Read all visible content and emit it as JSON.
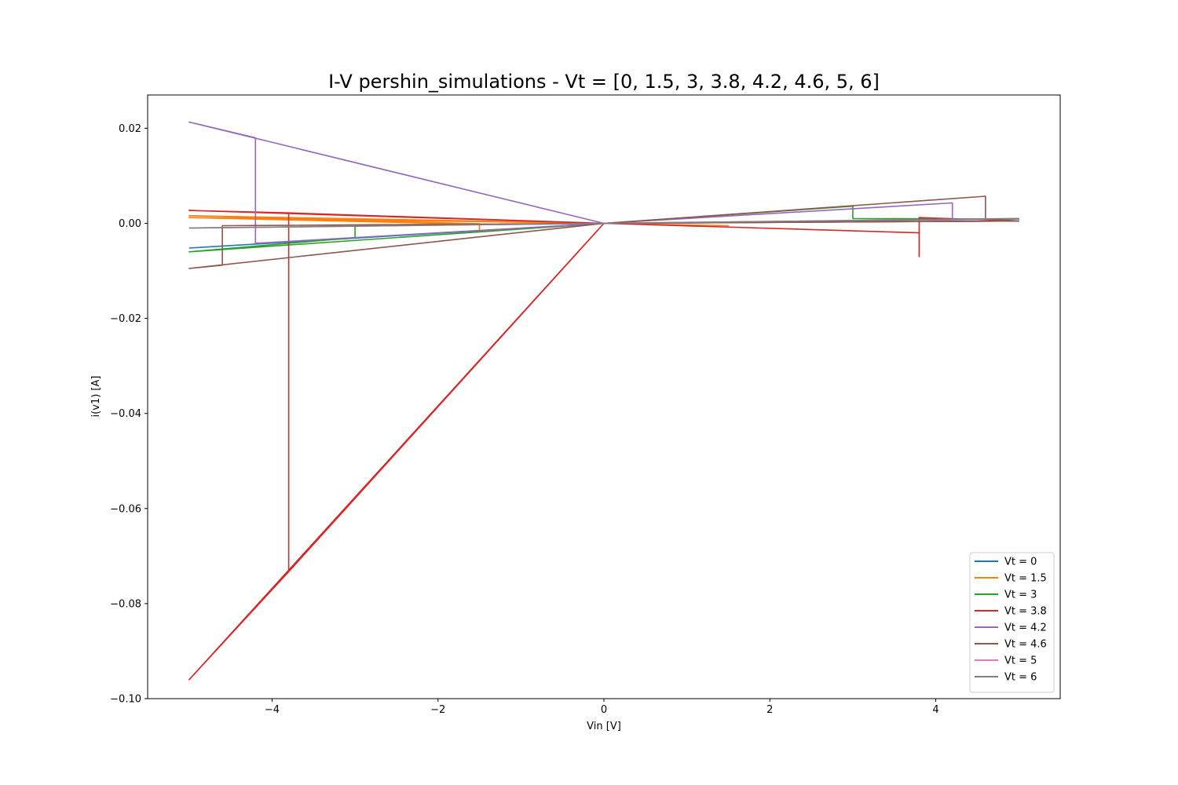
{
  "chart_data": {
    "type": "line",
    "title": "I-V pershin_simulations - Vt = [0, 1.5, 3, 3.8, 4.2, 4.6, 5, 6]",
    "xlabel": "Vin [V]",
    "ylabel": "i(v1) [A]",
    "xlim": [
      -5.5,
      5.5
    ],
    "ylim": [
      -0.1,
      0.027
    ],
    "xticks": [
      -4,
      -2,
      0,
      2,
      4
    ],
    "xtick_labels": [
      "−4",
      "−2",
      "0",
      "2",
      "4"
    ],
    "yticks": [
      0.02,
      0.0,
      -0.02,
      -0.04,
      -0.06,
      -0.08,
      -0.1
    ],
    "ytick_labels": [
      "0.02",
      "0.00",
      "−0.02",
      "−0.04",
      "−0.06",
      "−0.08",
      "−0.10"
    ],
    "grid": false,
    "legend_position": "lower-right",
    "series": [
      {
        "name": "Vt = 0",
        "color": "#1f77b4",
        "x": [
          -5,
          0,
          5,
          0,
          -5
        ],
        "y": [
          -0.0052,
          0,
          0.0005,
          0,
          -0.0052
        ]
      },
      {
        "name": "Vt = 1.5",
        "color": "#ff7f0e",
        "x": [
          0,
          1.5,
          0,
          -1.5,
          -1.5,
          -5,
          0,
          1.5,
          0,
          -1.5,
          -1.5,
          -5,
          0
        ],
        "y": [
          0,
          -0.0005,
          0,
          -0.0016,
          -0.0001,
          0.0016,
          0,
          -0.0005,
          0,
          -0.0016,
          -0.0002,
          0.0012,
          0
        ]
      },
      {
        "name": "Vt = 3",
        "color": "#2ca02c",
        "x": [
          0,
          3,
          3,
          5,
          0,
          -3,
          -3,
          -5,
          0
        ],
        "y": [
          0,
          0.0036,
          0.001,
          0.0009,
          0,
          -0.0005,
          -0.003,
          -0.006,
          0
        ]
      },
      {
        "name": "Vt = 3.8",
        "color": "#d62728",
        "x": [
          0,
          3.8,
          3.8,
          3.8,
          5,
          0,
          -3.8,
          -3.8,
          -5,
          0,
          -3.8,
          -3.8,
          -5,
          0
        ],
        "y": [
          0,
          -0.002,
          -0.007,
          0.0012,
          0.0005,
          0,
          0.0022,
          -0.0733,
          -0.096,
          0,
          -0.0733,
          0.0022,
          0.0027,
          0
        ]
      },
      {
        "name": "Vt = 4.2",
        "color": "#9467bd",
        "x": [
          0,
          4.2,
          4.2,
          5,
          0,
          -4.2,
          -4.2,
          -5,
          0
        ],
        "y": [
          0,
          0.0043,
          0.0009,
          0.0009,
          0,
          -0.0042,
          0.018,
          0.0213,
          0
        ]
      },
      {
        "name": "Vt = 4.6",
        "color": "#8c564b",
        "x": [
          0,
          4.6,
          4.6,
          5,
          0,
          -4.6,
          -4.6,
          -5,
          0
        ],
        "y": [
          0,
          0.0057,
          0.0009,
          0.0005,
          0,
          -0.0005,
          -0.0088,
          -0.0095,
          0
        ]
      },
      {
        "name": "Vt = 5",
        "color": "#e377c2",
        "x": [
          -5,
          0,
          5,
          0,
          -5
        ],
        "y": [
          -0.001,
          0,
          0.001,
          0,
          -0.001
        ]
      },
      {
        "name": "Vt = 6",
        "color": "#7f7f7f",
        "x": [
          -5,
          0,
          5,
          0,
          -5
        ],
        "y": [
          -0.001,
          0,
          0.001,
          0,
          -0.001
        ]
      }
    ]
  }
}
